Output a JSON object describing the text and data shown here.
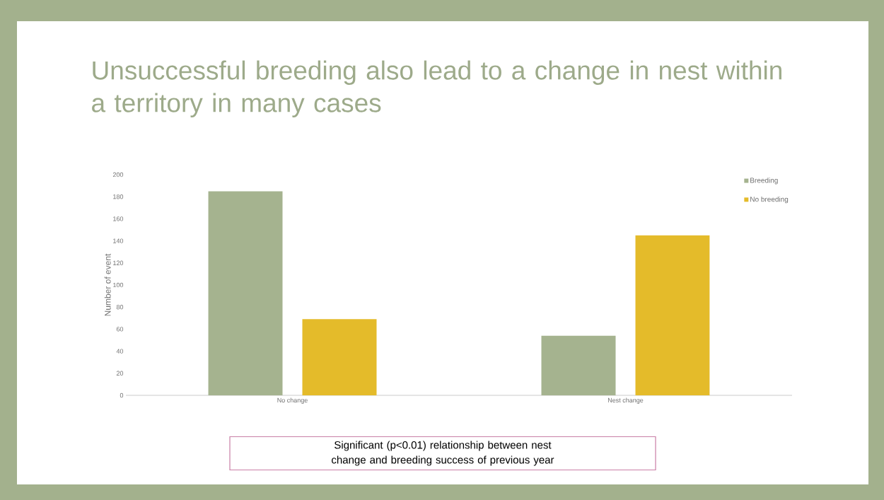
{
  "chart_data": {
    "type": "bar",
    "title": "Unsuccessful breeding also lead to a change in nest within a territory in many cases",
    "ylabel": "Number of event",
    "categories": [
      "No change",
      "Nest change"
    ],
    "series": [
      {
        "name": "Breeding",
        "color": "#a5b38f",
        "values": [
          185,
          54
        ]
      },
      {
        "name": "No breeding",
        "color": "#e4bb2a",
        "values": [
          69,
          145
        ]
      }
    ],
    "ylim": [
      0,
      200
    ],
    "yticks": [
      0,
      20,
      40,
      60,
      80,
      100,
      120,
      140,
      160,
      180,
      200
    ],
    "legend": "top right",
    "annotations": [
      "Significant (p<0.01) relationship between nest change and breeding success of previous year"
    ]
  }
}
